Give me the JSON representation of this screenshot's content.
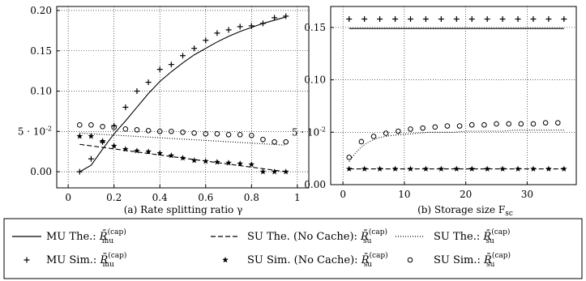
{
  "figure": {
    "subfigures": [
      {
        "caption": "(a) Rate splitting ratio γ"
      },
      {
        "caption": "(b) Storage size F",
        "caption_sub": "sc"
      }
    ],
    "legend": [
      {
        "label": "MU The.: ",
        "sym": "R̄",
        "sub": "mu",
        "sup": "(cap)"
      },
      {
        "label": "SU The. (No Cache): ",
        "sym": "R̄",
        "sub": "su",
        "sup": "(cap)"
      },
      {
        "label": "SU The.: ",
        "sym": "R̄",
        "sub": "su",
        "sup": "(cap)"
      },
      {
        "label": "MU Sim.: ",
        "sym": "R̄",
        "sub": "mu",
        "sup": "(cap)"
      },
      {
        "label": "SU Sim. (No Cache): ",
        "sym": "R̄",
        "sub": "su",
        "sup": "(cap)"
      },
      {
        "label": "SU Sim.: ",
        "sym": "R̄",
        "sub": "su",
        "sup": "(cap)"
      }
    ]
  },
  "chart_data": [
    {
      "type": "line",
      "xlabel": "Rate splitting ratio γ",
      "xlim": [
        -0.05,
        1.05
      ],
      "ylim": [
        -0.02,
        0.205
      ],
      "xticks": [
        0,
        0.2,
        0.4,
        0.6,
        0.8,
        1
      ],
      "xtick_labels": [
        "0",
        "0.2",
        "0.4",
        "0.6",
        "0.8",
        "1"
      ],
      "yticks": [
        0,
        0.05,
        0.1,
        0.15,
        0.2
      ],
      "ytick_labels": [
        "0.00",
        "5 · 10",
        "0.10",
        "0.15",
        "0.20"
      ],
      "ytick_label_sup": [
        "",
        "-2",
        "",
        "",
        ""
      ],
      "grid": true,
      "series": [
        {
          "name": "MU The.",
          "style": "solid",
          "x": [
            0.05,
            0.1,
            0.15,
            0.2,
            0.25,
            0.3,
            0.35,
            0.4,
            0.45,
            0.5,
            0.55,
            0.6,
            0.65,
            0.7,
            0.75,
            0.8,
            0.85,
            0.9,
            0.95
          ],
          "y": [
            0.0,
            0.008,
            0.028,
            0.047,
            0.063,
            0.08,
            0.097,
            0.112,
            0.124,
            0.135,
            0.145,
            0.153,
            0.161,
            0.168,
            0.174,
            0.179,
            0.184,
            0.188,
            0.192
          ]
        },
        {
          "name": "SU The. (No Cache)",
          "style": "dashed",
          "x": [
            0.05,
            0.95
          ],
          "y": [
            0.034,
            0.0
          ]
        },
        {
          "name": "SU The.",
          "style": "dotted",
          "x": [
            0.05,
            0.95
          ],
          "y": [
            0.048,
            0.033
          ]
        },
        {
          "name": "MU Sim.",
          "marker": "plus",
          "x": [
            0.05,
            0.1,
            0.15,
            0.2,
            0.25,
            0.3,
            0.35,
            0.4,
            0.45,
            0.5,
            0.55,
            0.6,
            0.65,
            0.7,
            0.75,
            0.8,
            0.85,
            0.9,
            0.95
          ],
          "y": [
            0.0,
            0.016,
            0.037,
            0.057,
            0.08,
            0.1,
            0.111,
            0.127,
            0.133,
            0.144,
            0.153,
            0.163,
            0.172,
            0.176,
            0.18,
            0.181,
            0.184,
            0.191,
            0.193
          ]
        },
        {
          "name": "SU Sim. (No Cache)",
          "marker": "star",
          "x": [
            0.05,
            0.1,
            0.15,
            0.2,
            0.25,
            0.3,
            0.35,
            0.4,
            0.45,
            0.5,
            0.55,
            0.6,
            0.65,
            0.7,
            0.75,
            0.8,
            0.85,
            0.9,
            0.95
          ],
          "y": [
            0.044,
            0.044,
            0.038,
            0.032,
            0.028,
            0.026,
            0.025,
            0.023,
            0.02,
            0.017,
            0.014,
            0.013,
            0.012,
            0.011,
            0.01,
            0.009,
            0.0,
            0.0,
            0.0
          ]
        },
        {
          "name": "SU Sim.",
          "marker": "circle",
          "x": [
            0.05,
            0.1,
            0.15,
            0.2,
            0.25,
            0.3,
            0.35,
            0.4,
            0.45,
            0.5,
            0.55,
            0.6,
            0.65,
            0.7,
            0.75,
            0.8,
            0.85,
            0.9,
            0.95
          ],
          "y": [
            0.058,
            0.058,
            0.056,
            0.055,
            0.053,
            0.052,
            0.051,
            0.05,
            0.05,
            0.049,
            0.048,
            0.047,
            0.047,
            0.046,
            0.046,
            0.045,
            0.04,
            0.037,
            0.037
          ]
        }
      ]
    },
    {
      "type": "line",
      "xlabel": "Storage size F_sc",
      "xlim": [
        -2,
        38
      ],
      "ylim": [
        0.0,
        0.17
      ],
      "xticks": [
        0,
        10,
        20,
        30
      ],
      "xtick_labels": [
        "0",
        "10",
        "20",
        "30"
      ],
      "yticks": [
        0.0,
        0.05,
        0.1,
        0.15
      ],
      "ytick_labels": [
        "0.00",
        "5 · 10",
        "0.10",
        "0.15"
      ],
      "ytick_label_sup": [
        "",
        "-2",
        "",
        ""
      ],
      "grid": true,
      "series": [
        {
          "name": "MU The.",
          "style": "solid",
          "x": [
            1,
            36
          ],
          "y": [
            0.149,
            0.149
          ]
        },
        {
          "name": "SU The. (No Cache)",
          "style": "dashed",
          "x": [
            1,
            36
          ],
          "y": [
            0.015,
            0.015
          ]
        },
        {
          "name": "SU The.",
          "style": "dotted",
          "x": [
            1,
            2,
            3,
            4,
            5,
            6,
            8,
            10,
            12,
            14,
            16,
            18,
            20,
            22,
            24,
            26,
            28,
            30,
            32,
            34,
            36
          ],
          "y": [
            0.022,
            0.03,
            0.036,
            0.04,
            0.043,
            0.045,
            0.047,
            0.048,
            0.049,
            0.05,
            0.05,
            0.05,
            0.051,
            0.051,
            0.051,
            0.051,
            0.052,
            0.052,
            0.052,
            0.052,
            0.052
          ]
        },
        {
          "name": "MU Sim.",
          "marker": "plus",
          "x": [
            1,
            3.5,
            6,
            8.5,
            11,
            13.5,
            16,
            18.5,
            21,
            23.5,
            26,
            28.5,
            31,
            33.5,
            36
          ],
          "y": [
            0.158,
            0.158,
            0.158,
            0.158,
            0.158,
            0.158,
            0.158,
            0.158,
            0.158,
            0.158,
            0.158,
            0.158,
            0.158,
            0.158,
            0.158
          ]
        },
        {
          "name": "SU Sim. (No Cache)",
          "marker": "star",
          "x": [
            1,
            3.5,
            6,
            8.5,
            11,
            13.5,
            16,
            18.5,
            21,
            23.5,
            26,
            28.5,
            31,
            33.5,
            36
          ],
          "y": [
            0.015,
            0.015,
            0.015,
            0.015,
            0.015,
            0.015,
            0.015,
            0.015,
            0.015,
            0.015,
            0.015,
            0.015,
            0.015,
            0.015,
            0.015
          ]
        },
        {
          "name": "SU Sim.",
          "marker": "circle",
          "x": [
            1,
            3,
            5,
            7,
            9,
            11,
            13,
            15,
            17,
            19,
            21,
            23,
            25,
            27,
            29,
            31,
            33,
            35
          ],
          "y": [
            0.026,
            0.041,
            0.046,
            0.049,
            0.051,
            0.053,
            0.054,
            0.055,
            0.056,
            0.056,
            0.057,
            0.057,
            0.058,
            0.058,
            0.058,
            0.058,
            0.059,
            0.059
          ]
        }
      ]
    }
  ]
}
